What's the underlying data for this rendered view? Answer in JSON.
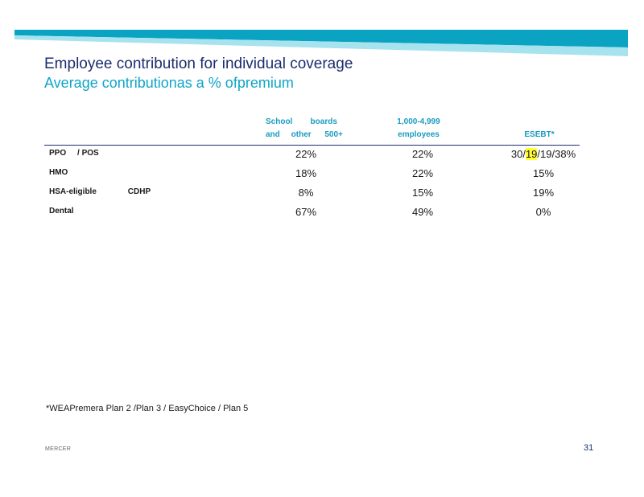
{
  "slide": {
    "title": "Employee contribution for individual coverage",
    "subtitle": "Average contributionas a % ofpremium",
    "colors": {
      "title": "#1a2e6e",
      "subtitle": "#0ea5c8",
      "banner_dark": "#0aa3c2",
      "banner_light": "#a7e3ef",
      "highlight": "#ffff33"
    }
  },
  "table": {
    "headers": {
      "school_line1": "School        boards",
      "school_line2": "and     other      500+",
      "emp_line1": "1,000-4,999",
      "emp_line2": "employees",
      "esebt": "ESEBT*"
    },
    "rows": [
      {
        "label": "PPO     / POS",
        "school": "22%",
        "emp": "22%",
        "esebt_pre": "30/",
        "esebt_hl": "19",
        "esebt_post": "/19/38%"
      },
      {
        "label": "HMO",
        "school": "18%",
        "emp": "22%",
        "esebt": "15%"
      },
      {
        "label": "HSA-eligible              CDHP",
        "school": "8%",
        "emp": "15%",
        "esebt": "19%"
      },
      {
        "label": "Dental",
        "school": "67%",
        "emp": "49%",
        "esebt": "0%"
      }
    ]
  },
  "footer": {
    "footnote": "*WEAPremera Plan 2 /Plan 3 / EasyChoice / Plan 5",
    "brand": "MERCER",
    "page_number": "31"
  }
}
